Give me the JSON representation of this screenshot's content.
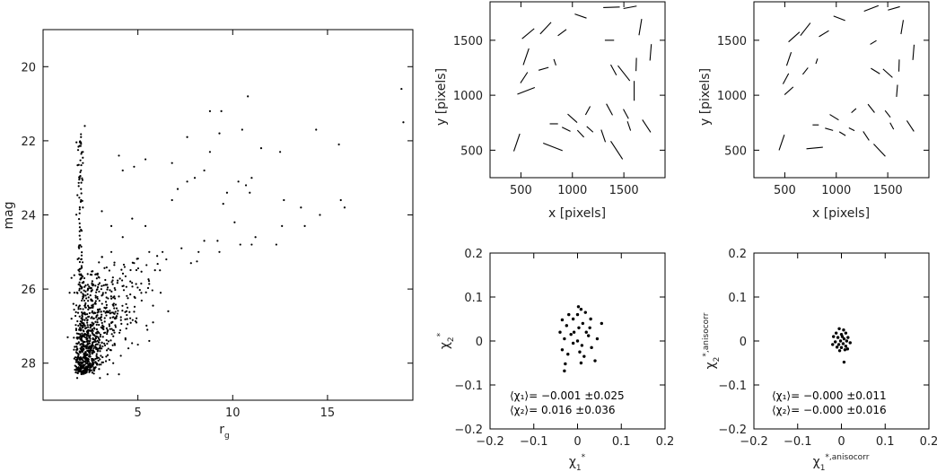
{
  "chart_data": [
    {
      "id": "p1",
      "type": "scatter",
      "xlim": [
        0,
        19.5
      ],
      "ylim": [
        29,
        19
      ],
      "xticks": [
        5,
        10,
        15
      ],
      "xticklabels": [
        "5",
        "10",
        "15"
      ],
      "yticks": [
        20,
        22,
        24,
        26,
        28
      ],
      "yticklabels": [
        "20",
        "22",
        "24",
        "26",
        "28"
      ],
      "xlabel_main": "r",
      "xlabel_sub": "g",
      "ylabel": "mag",
      "points": [
        [
          18.9,
          20.6
        ],
        [
          19.0,
          21.5
        ],
        [
          10.8,
          20.8
        ],
        [
          8.8,
          21.2
        ],
        [
          9.4,
          21.2
        ],
        [
          10.5,
          21.7
        ],
        [
          9.3,
          21.8
        ],
        [
          14.4,
          21.7
        ],
        [
          15.6,
          22.1
        ],
        [
          11.5,
          22.2
        ],
        [
          12.5,
          22.3
        ],
        [
          7.6,
          21.9
        ],
        [
          8.8,
          22.3
        ],
        [
          5.4,
          22.5
        ],
        [
          4.0,
          22.4
        ],
        [
          4.2,
          22.8
        ],
        [
          4.8,
          22.7
        ],
        [
          6.8,
          22.6
        ],
        [
          8.5,
          22.8
        ],
        [
          8.0,
          23.0
        ],
        [
          7.1,
          23.3
        ],
        [
          6.8,
          23.6
        ],
        [
          7.6,
          23.1
        ],
        [
          10.7,
          23.2
        ],
        [
          10.3,
          23.1
        ],
        [
          10.9,
          23.4
        ],
        [
          11.0,
          23.0
        ],
        [
          9.7,
          23.4
        ],
        [
          9.5,
          23.7
        ],
        [
          12.7,
          23.6
        ],
        [
          13.6,
          23.8
        ],
        [
          15.7,
          23.6
        ],
        [
          15.9,
          23.8
        ],
        [
          14.6,
          24.0
        ],
        [
          13.8,
          24.3
        ],
        [
          12.6,
          24.3
        ],
        [
          10.1,
          24.2
        ],
        [
          11.2,
          24.6
        ],
        [
          12.3,
          24.8
        ],
        [
          11.0,
          24.8
        ],
        [
          8.5,
          24.7
        ],
        [
          7.3,
          24.9
        ],
        [
          9.2,
          24.7
        ],
        [
          6.5,
          25.2
        ],
        [
          6.3,
          25.0
        ],
        [
          7.8,
          25.3
        ],
        [
          8.2,
          25.0
        ],
        [
          9.3,
          25.0
        ],
        [
          10.4,
          24.8
        ],
        [
          6.2,
          26.1
        ],
        [
          6.6,
          26.6
        ],
        [
          5.8,
          26.9
        ],
        [
          5.5,
          27.1
        ],
        [
          5.6,
          27.4
        ],
        [
          5.0,
          27.5
        ],
        [
          4.5,
          27.6
        ],
        [
          4.1,
          27.8
        ],
        [
          3.7,
          28.0
        ],
        [
          4.0,
          28.3
        ],
        [
          3.4,
          28.3
        ],
        [
          3.0,
          28.4
        ],
        [
          2.7,
          28.2
        ],
        [
          2.2,
          28.2
        ],
        [
          1.8,
          28.4
        ],
        [
          1.3,
          27.3
        ],
        [
          1.5,
          26.8
        ],
        [
          1.4,
          26.1
        ],
        [
          1.6,
          26.4
        ],
        [
          1.5,
          25.7
        ],
        [
          2.0,
          25.2
        ],
        [
          2.0,
          24.4
        ],
        [
          2.1,
          23.8
        ],
        [
          2.0,
          23.3
        ],
        [
          2.0,
          22.8
        ],
        [
          2.1,
          22.3
        ],
        [
          2.0,
          21.9
        ],
        [
          2.2,
          21.6
        ],
        [
          2.1,
          22.6
        ],
        [
          2.0,
          23.6
        ],
        [
          1.9,
          24.9
        ],
        [
          2.0,
          25.6
        ],
        [
          2.1,
          26.2
        ],
        [
          2.2,
          27.0
        ],
        [
          2.1,
          27.5
        ],
        [
          3.1,
          23.9
        ],
        [
          3.6,
          24.3
        ],
        [
          4.7,
          24.1
        ],
        [
          5.4,
          24.3
        ],
        [
          4.2,
          24.6
        ],
        [
          3.6,
          25.0
        ],
        [
          4.8,
          25.3
        ],
        [
          5.6,
          25.0
        ],
        [
          3.2,
          25.9
        ],
        [
          4.0,
          26.2
        ],
        [
          4.4,
          26.6
        ],
        [
          3.5,
          27.0
        ],
        [
          2.9,
          27.3
        ],
        [
          2.6,
          26.6
        ],
        [
          3.0,
          26.8
        ],
        [
          2.7,
          27.7
        ],
        [
          2.4,
          27.9
        ]
      ],
      "note": "Approx. 1000 points; dense cloud concentrated at r_g 1.5-5, mag 25-28.3, sparser tail to r_g ~19."
    },
    {
      "id": "p2",
      "type": "whisker",
      "xlim": [
        200,
        1900
      ],
      "ylim": [
        250,
        1850
      ],
      "xticks": [
        500,
        1000,
        1500
      ],
      "xticklabels": [
        "500",
        "1000",
        "1500"
      ],
      "yticks": [
        500,
        1000,
        1500
      ],
      "yticklabels": [
        "500",
        "1000",
        "1500"
      ],
      "xlabel": "x [pixels]",
      "ylabel": "y [pixels]",
      "segments": [
        [
          1380,
          1800,
          160,
          2
        ],
        [
          1080,
          1720,
          120,
          -18
        ],
        [
          1560,
          1800,
          130,
          10
        ],
        [
          740,
          1610,
          150,
          45
        ],
        [
          1660,
          1620,
          150,
          80
        ],
        [
          550,
          1350,
          160,
          70
        ],
        [
          570,
          1560,
          150,
          38
        ],
        [
          900,
          1570,
          100,
          35
        ],
        [
          1760,
          1390,
          150,
          85
        ],
        [
          1360,
          1500,
          90,
          0
        ],
        [
          1400,
          1230,
          110,
          -60
        ],
        [
          720,
          1240,
          100,
          15
        ],
        [
          830,
          1300,
          60,
          -70
        ],
        [
          530,
          1160,
          120,
          55
        ],
        [
          1620,
          1280,
          120,
          88
        ],
        [
          1500,
          1200,
          180,
          -50
        ],
        [
          550,
          1040,
          180,
          20
        ],
        [
          1600,
          1040,
          180,
          90
        ],
        [
          1360,
          870,
          120,
          -60
        ],
        [
          1150,
          860,
          90,
          60
        ],
        [
          1000,
          790,
          120,
          -40
        ],
        [
          460,
          570,
          170,
          70
        ],
        [
          1520,
          830,
          100,
          -60
        ],
        [
          1550,
          720,
          90,
          -70
        ],
        [
          1720,
          720,
          140,
          -55
        ],
        [
          1430,
          500,
          200,
          -55
        ],
        [
          820,
          740,
          80,
          0
        ],
        [
          810,
          530,
          200,
          -20
        ],
        [
          940,
          690,
          90,
          -25
        ],
        [
          1170,
          690,
          80,
          -40
        ],
        [
          1080,
          650,
          90,
          -45
        ],
        [
          1300,
          630,
          120,
          -70
        ]
      ]
    },
    {
      "id": "p3",
      "type": "whisker",
      "xlim": [
        200,
        1900
      ],
      "ylim": [
        250,
        1850
      ],
      "xticks": [
        500,
        1000,
        1500
      ],
      "xticklabels": [
        "500",
        "1000",
        "1500"
      ],
      "yticks": [
        500,
        1000,
        1500
      ],
      "yticklabels": [
        "500",
        "1000",
        "1500"
      ],
      "xlabel": "x [pixels]",
      "ylabel": "y [pixels]",
      "segments": [
        [
          1340,
          1790,
          150,
          20
        ],
        [
          1030,
          1700,
          120,
          -20
        ],
        [
          1560,
          1790,
          120,
          15
        ],
        [
          700,
          1600,
          150,
          50
        ],
        [
          1640,
          1620,
          130,
          80
        ],
        [
          540,
          1330,
          130,
          70
        ],
        [
          590,
          1530,
          140,
          40
        ],
        [
          880,
          1560,
          110,
          30
        ],
        [
          1750,
          1390,
          140,
          85
        ],
        [
          1360,
          1480,
          70,
          30
        ],
        [
          1380,
          1220,
          100,
          -30
        ],
        [
          700,
          1220,
          80,
          50
        ],
        [
          810,
          1310,
          50,
          70
        ],
        [
          510,
          1150,
          110,
          60
        ],
        [
          1610,
          1270,
          110,
          88
        ],
        [
          1500,
          1200,
          120,
          -40
        ],
        [
          540,
          1040,
          110,
          40
        ],
        [
          1590,
          1040,
          110,
          85
        ],
        [
          1340,
          880,
          100,
          -50
        ],
        [
          1170,
          860,
          60,
          40
        ],
        [
          980,
          800,
          100,
          -30
        ],
        [
          470,
          570,
          150,
          70
        ],
        [
          1500,
          830,
          80,
          -50
        ],
        [
          1540,
          720,
          70,
          -60
        ],
        [
          1720,
          720,
          120,
          -55
        ],
        [
          1420,
          500,
          160,
          -45
        ],
        [
          800,
          730,
          60,
          0
        ],
        [
          790,
          520,
          160,
          5
        ],
        [
          930,
          690,
          80,
          -15
        ],
        [
          1150,
          690,
          60,
          -25
        ],
        [
          1060,
          650,
          70,
          -30
        ],
        [
          1290,
          630,
          100,
          -55
        ]
      ]
    },
    {
      "id": "p4",
      "type": "scatter",
      "xlim": [
        -0.2,
        0.2
      ],
      "ylim": [
        -0.2,
        0.2
      ],
      "xticks": [
        -0.2,
        -0.1,
        0,
        0.1,
        0.2
      ],
      "xticklabels": [
        "−0.2",
        "−0.1",
        "0",
        "0.1",
        "0.2"
      ],
      "yticks": [
        -0.2,
        -0.1,
        0,
        0.1,
        0.2
      ],
      "yticklabels": [
        "−0.2",
        "−0.1",
        "0",
        "0.1",
        "0.2"
      ],
      "xlabel_main": "χ",
      "xlabel_sub": "1",
      "xlabel_sup": "*",
      "ylabel_main": "χ",
      "ylabel_sub": "2",
      "ylabel_sup": "*",
      "stats": [
        "⟨χ₁⟩= −0.001 ±0.025",
        "⟨χ₂⟩= 0.016 ±0.036"
      ],
      "points": [
        [
          0.002,
          0.078
        ],
        [
          0.008,
          0.072
        ],
        [
          -0.02,
          0.06
        ],
        [
          -0.035,
          0.048
        ],
        [
          0.03,
          0.05
        ],
        [
          0.055,
          0.04
        ],
        [
          -0.01,
          0.05
        ],
        [
          0.012,
          0.04
        ],
        [
          -0.025,
          0.035
        ],
        [
          0.003,
          0.03
        ],
        [
          0.02,
          0.02
        ],
        [
          -0.04,
          0.02
        ],
        [
          -0.015,
          0.015
        ],
        [
          0.025,
          0.012
        ],
        [
          0.045,
          0.005
        ],
        [
          -0.03,
          0.005
        ],
        [
          0.0,
          0.0
        ],
        [
          -0.01,
          -0.005
        ],
        [
          0.01,
          -0.01
        ],
        [
          0.032,
          -0.015
        ],
        [
          -0.035,
          -0.02
        ],
        [
          0.005,
          -0.025
        ],
        [
          -0.022,
          -0.03
        ],
        [
          0.015,
          -0.035
        ],
        [
          0.04,
          -0.045
        ],
        [
          -0.028,
          -0.052
        ],
        [
          0.008,
          -0.05
        ],
        [
          -0.03,
          -0.068
        ],
        [
          0.0,
          0.06
        ],
        [
          0.018,
          0.065
        ],
        [
          -0.008,
          0.02
        ],
        [
          0.028,
          0.03
        ]
      ]
    },
    {
      "id": "p5",
      "type": "scatter",
      "xlim": [
        -0.2,
        0.2
      ],
      "ylim": [
        -0.2,
        0.2
      ],
      "xticks": [
        -0.2,
        -0.1,
        0,
        0.1,
        0.2
      ],
      "xticklabels": [
        "−0.2",
        "−0.1",
        "0",
        "0.1",
        "0.2"
      ],
      "yticks": [
        -0.2,
        -0.1,
        0,
        0.1,
        0.2
      ],
      "yticklabels": [
        "−0.2",
        "−0.1",
        "0",
        "0.1",
        "0.2"
      ],
      "xlabel_main": "χ",
      "xlabel_sub": "1",
      "xlabel_sup": "*,anisocorr",
      "ylabel_main": "χ",
      "ylabel_sub": "2",
      "ylabel_sup": "*,anisocorr",
      "stats": [
        "⟨χ₁⟩= −0.000 ±0.011",
        "⟨χ₂⟩= −0.000 ±0.016"
      ],
      "points": [
        [
          -0.005,
          0.028
        ],
        [
          0.005,
          0.025
        ],
        [
          -0.012,
          0.018
        ],
        [
          0.01,
          0.018
        ],
        [
          0.0,
          0.015
        ],
        [
          -0.018,
          0.01
        ],
        [
          0.015,
          0.008
        ],
        [
          -0.008,
          0.008
        ],
        [
          0.006,
          0.005
        ],
        [
          -0.002,
          0.0
        ],
        [
          0.012,
          0.0
        ],
        [
          -0.014,
          -0.002
        ],
        [
          0.02,
          -0.004
        ],
        [
          0.004,
          -0.006
        ],
        [
          -0.006,
          -0.008
        ],
        [
          0.01,
          -0.012
        ],
        [
          -0.02,
          -0.008
        ],
        [
          0.0,
          -0.015
        ],
        [
          0.008,
          -0.02
        ],
        [
          -0.004,
          -0.022
        ],
        [
          0.014,
          -0.018
        ],
        [
          -0.01,
          -0.014
        ],
        [
          0.006,
          -0.048
        ],
        [
          0.002,
          0.01
        ]
      ]
    }
  ]
}
